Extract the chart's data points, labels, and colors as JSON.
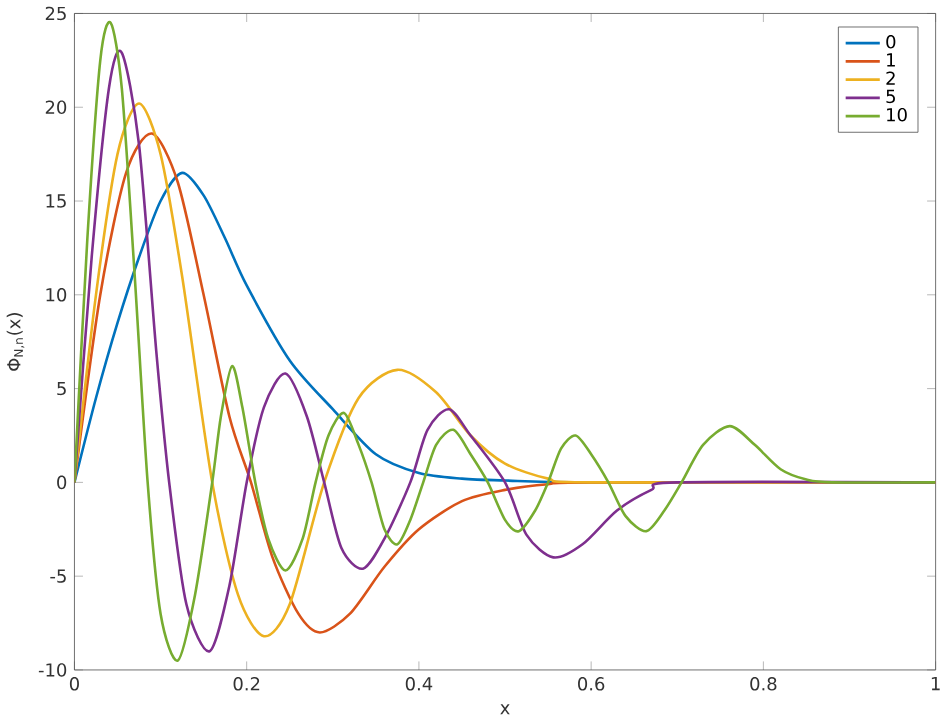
{
  "chart_data": {
    "type": "line",
    "xlabel": "x",
    "ylabel": "Φ$_{N,n}$(x)",
    "xlim": [
      0,
      1
    ],
    "ylim": [
      -10,
      25
    ],
    "xticks": [
      0,
      0.2,
      0.4,
      0.6,
      0.8,
      1
    ],
    "yticks": [
      -10,
      -5,
      0,
      5,
      10,
      15,
      20,
      25
    ],
    "grid": false,
    "legend": "top right",
    "marker": "none",
    "line_style": "solid",
    "series": [
      {
        "name": "0",
        "color": "#0072bd",
        "x": [
          0,
          0.025,
          0.05,
          0.075,
          0.1,
          0.125,
          0.15,
          0.175,
          0.2,
          0.25,
          0.3,
          0.35,
          0.4,
          0.45,
          0.5,
          0.6,
          1
        ],
        "values": [
          0,
          4.5,
          8.5,
          12,
          15,
          16.5,
          15.3,
          13,
          10.5,
          6.5,
          3.9,
          1.5,
          0.5,
          0.2,
          0.1,
          0,
          0
        ]
      },
      {
        "name": "1",
        "color": "#d95319",
        "x": [
          0,
          0.03,
          0.06,
          0.09,
          0.12,
          0.15,
          0.18,
          0.205,
          0.23,
          0.26,
          0.285,
          0.32,
          0.36,
          0.4,
          0.45,
          0.5,
          0.55,
          0.6,
          1
        ],
        "values": [
          0,
          10,
          16.5,
          18.6,
          16,
          10,
          3.5,
          0,
          -4,
          -7,
          -8,
          -7,
          -4.5,
          -2.5,
          -1,
          -0.4,
          -0.1,
          0,
          0
        ]
      },
      {
        "name": "2",
        "color": "#edb120",
        "x": [
          0,
          0.025,
          0.05,
          0.075,
          0.1,
          0.125,
          0.16,
          0.19,
          0.22,
          0.25,
          0.29,
          0.33,
          0.375,
          0.42,
          0.46,
          0.5,
          0.55,
          0.6,
          1
        ],
        "values": [
          0,
          10,
          17.5,
          20.2,
          17.5,
          11,
          0,
          -6,
          -8.2,
          -6.5,
          0,
          4.5,
          6,
          4.8,
          2.5,
          1,
          0.2,
          0,
          0
        ]
      },
      {
        "name": "5",
        "color": "#7e2f8e",
        "x": [
          0,
          0.02,
          0.04,
          0.055,
          0.075,
          0.095,
          0.11,
          0.13,
          0.157,
          0.18,
          0.2,
          0.22,
          0.245,
          0.27,
          0.29,
          0.31,
          0.335,
          0.36,
          0.39,
          0.41,
          0.435,
          0.46,
          0.5,
          0.525,
          0.556,
          0.59,
          0.63,
          0.67,
          0.7,
          1
        ],
        "values": [
          0,
          12,
          21,
          22.9,
          18,
          7,
          0,
          -6.5,
          -9,
          -5.5,
          0,
          4,
          5.8,
          3.5,
          0,
          -3.5,
          -4.6,
          -3,
          0,
          2.8,
          3.9,
          2.5,
          0,
          -2.8,
          -4,
          -3.3,
          -1.5,
          -0.4,
          0,
          0
        ]
      },
      {
        "name": "10",
        "color": "#77ac30",
        "x": [
          0,
          0.015,
          0.03,
          0.042,
          0.055,
          0.07,
          0.085,
          0.1,
          0.12,
          0.14,
          0.16,
          0.17,
          0.183,
          0.195,
          0.21,
          0.225,
          0.245,
          0.265,
          0.28,
          0.295,
          0.313,
          0.33,
          0.345,
          0.36,
          0.375,
          0.39,
          0.405,
          0.42,
          0.44,
          0.46,
          0.48,
          0.5,
          0.516,
          0.535,
          0.55,
          0.565,
          0.582,
          0.6,
          0.62,
          0.64,
          0.664,
          0.685,
          0.705,
          0.73,
          0.761,
          0.79,
          0.82,
          0.85,
          0.88,
          1
        ],
        "values": [
          0,
          13,
          22.5,
          24.5,
          21,
          11,
          0,
          -7,
          -9.5,
          -6,
          0,
          3.5,
          6.2,
          4,
          0,
          -3,
          -4.7,
          -3,
          0,
          2.5,
          3.7,
          2,
          0,
          -2.5,
          -3.3,
          -2,
          0,
          2,
          2.8,
          1.5,
          0,
          -2,
          -2.6,
          -1.5,
          0,
          1.8,
          2.5,
          1.5,
          0,
          -1.8,
          -2.6,
          -1.5,
          0,
          2,
          3,
          2,
          0.7,
          0.15,
          0,
          0
        ]
      }
    ]
  }
}
